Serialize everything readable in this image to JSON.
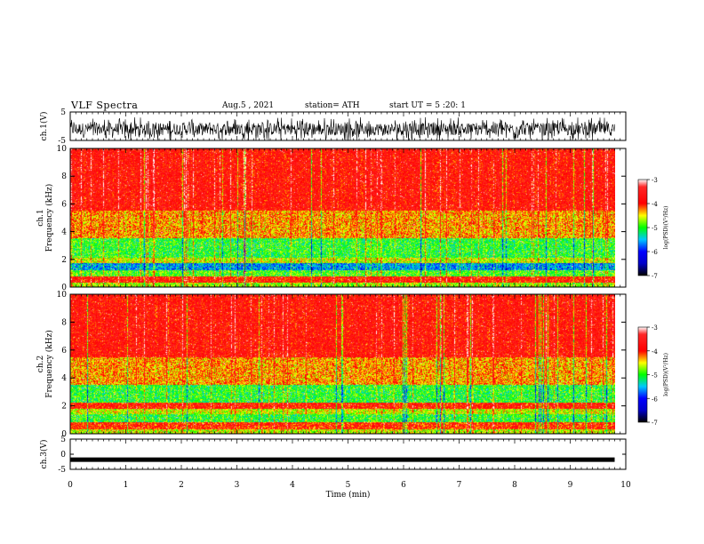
{
  "header": {
    "title": "VLF Spectra",
    "date": "Aug.5 , 2021",
    "station": "station= ATH",
    "start_ut": "start UT = 5 :20: 1"
  },
  "chart_data": [
    {
      "type": "line",
      "name": "ch1-waveform",
      "ylabel": "ch.1(V)",
      "ylim": [
        -5,
        5
      ],
      "yticks": [
        "5",
        "-5"
      ],
      "xlim": [
        0,
        10
      ],
      "data_extent_min": 9.8,
      "values_description": "noisy waveform around -1 V, spikes between about -4 and 5 V",
      "y_center": -1
    },
    {
      "type": "heatmap",
      "name": "ch1-spectrogram",
      "ylabel": "ch.1 Frequency (kHz)",
      "ylim": [
        0,
        10
      ],
      "yticks": [
        "0",
        "2",
        "4",
        "6",
        "8",
        "10"
      ],
      "xlim": [
        0,
        10
      ],
      "data_extent_min": 9.8,
      "bands": [
        {
          "from": 0.0,
          "to": 0.3,
          "level": -4.7
        },
        {
          "from": 0.3,
          "to": 0.8,
          "level": -3.9
        },
        {
          "from": 0.8,
          "to": 1.2,
          "level": -4.9
        },
        {
          "from": 1.2,
          "to": 1.7,
          "level": -5.6
        },
        {
          "from": 1.7,
          "to": 2.1,
          "level": -4.6
        },
        {
          "from": 2.1,
          "to": 3.5,
          "level": -5.0
        },
        {
          "from": 3.5,
          "to": 5.5,
          "level": -4.3
        },
        {
          "from": 5.5,
          "to": 10.0,
          "level": -3.8
        }
      ]
    },
    {
      "type": "heatmap",
      "name": "ch2-spectrogram",
      "ylabel": "ch.2 Frequency (kHz)",
      "ylim": [
        0,
        10
      ],
      "yticks": [
        "0",
        "2",
        "4",
        "6",
        "8",
        "10"
      ],
      "xlim": [
        0,
        10
      ],
      "data_extent_min": 9.8,
      "bands": [
        {
          "from": 0.0,
          "to": 0.3,
          "level": -4.6
        },
        {
          "from": 0.3,
          "to": 0.8,
          "level": -4.0
        },
        {
          "from": 0.8,
          "to": 1.4,
          "level": -5.0
        },
        {
          "from": 1.4,
          "to": 1.8,
          "level": -4.6
        },
        {
          "from": 1.8,
          "to": 2.2,
          "level": -3.9
        },
        {
          "from": 2.2,
          "to": 3.5,
          "level": -5.0
        },
        {
          "from": 3.5,
          "to": 5.5,
          "level": -4.3
        },
        {
          "from": 5.5,
          "to": 10.0,
          "level": -3.8
        }
      ]
    },
    {
      "type": "line",
      "name": "ch3-waveform",
      "ylabel": "ch.3(V)",
      "ylim": [
        -5,
        5
      ],
      "yticks": [
        "5",
        "0",
        "-5"
      ],
      "xlim": [
        0,
        10
      ],
      "data_extent_min": 9.8,
      "y_center": -1.8,
      "values_description": "flat thick trace near -2 V"
    }
  ],
  "x_axis": {
    "label": "Time (min)",
    "ticks": [
      "0",
      "1",
      "2",
      "3",
      "4",
      "5",
      "6",
      "7",
      "8",
      "9",
      "10"
    ]
  },
  "colorbar": {
    "label": "log(PSD)(V²/Hz)",
    "ticks": [
      "-3",
      "-4",
      "-5",
      "-6",
      "-7"
    ],
    "range": [
      -7,
      -3
    ],
    "colors": [
      "#000000",
      "#0000ff",
      "#00ffff",
      "#00ff00",
      "#ffff00",
      "#ff0000",
      "#ffffff"
    ]
  }
}
